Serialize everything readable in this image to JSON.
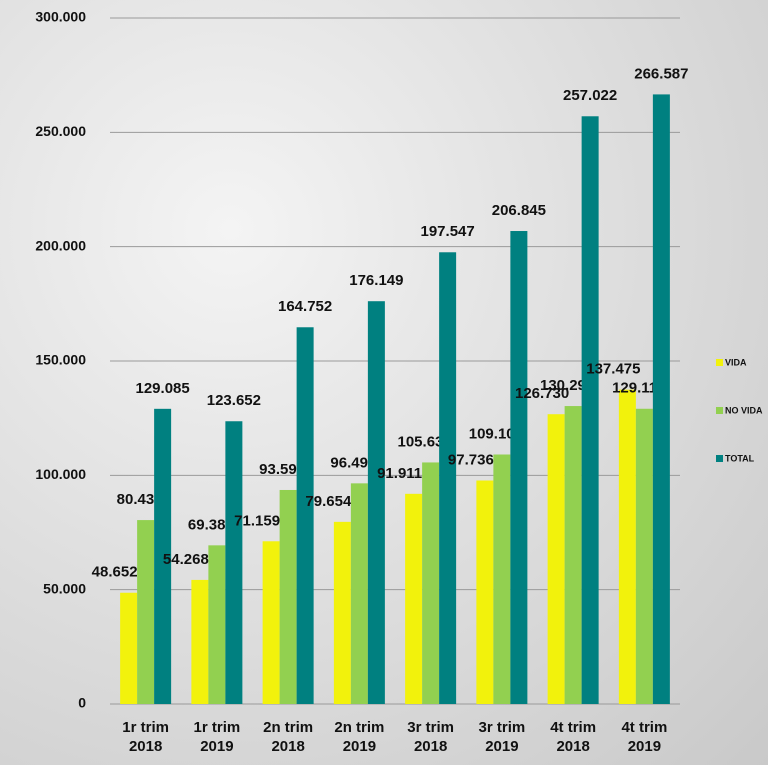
{
  "chart_data": {
    "type": "bar",
    "categories": [
      "1r trim 2018",
      "1r trim 2019",
      "2n trim 2018",
      "2n trim 2019",
      "3r trim 2018",
      "3r trim 2019",
      "4t trim 2018",
      "4t trim 2019"
    ],
    "series": [
      {
        "name": "VIDA",
        "color": "#f2f20c",
        "values": [
          48652,
          54268,
          71159,
          79654,
          91911,
          97736,
          126730,
          137475
        ],
        "value_labels": [
          "48.652",
          "54.268",
          "71.159",
          "79.654",
          "91.911",
          "97.736",
          "126.730",
          "137.475"
        ]
      },
      {
        "name": "NO VIDA",
        "color": "#92d050",
        "values": [
          80433,
          69384,
          93593,
          96495,
          105636,
          109109,
          130293,
          129111
        ],
        "value_labels": [
          "80.433",
          "69.384",
          "93.593",
          "96.495",
          "105.636",
          "109.109",
          "130.293",
          "129.111"
        ]
      },
      {
        "name": "TOTAL",
        "color": "#008080",
        "values": [
          129085,
          123652,
          164752,
          176149,
          197547,
          206845,
          257022,
          266587
        ],
        "value_labels": [
          "129.085",
          "123.652",
          "164.752",
          "176.149",
          "197.547",
          "206.845",
          "257.022",
          "266.587"
        ]
      }
    ],
    "ylim": [
      0,
      300000
    ],
    "yticks": [
      0,
      {
        "value": 50000,
        "label": "50.000"
      },
      {
        "value": 100000,
        "label": "100.000"
      },
      {
        "value": 150000,
        "label": "150.000"
      },
      {
        "value": 200000,
        "label": "200.000"
      },
      {
        "value": 250000,
        "label": "250.000"
      },
      {
        "value": 300000,
        "label": "300.000"
      }
    ],
    "grid": true,
    "legend": "right"
  }
}
